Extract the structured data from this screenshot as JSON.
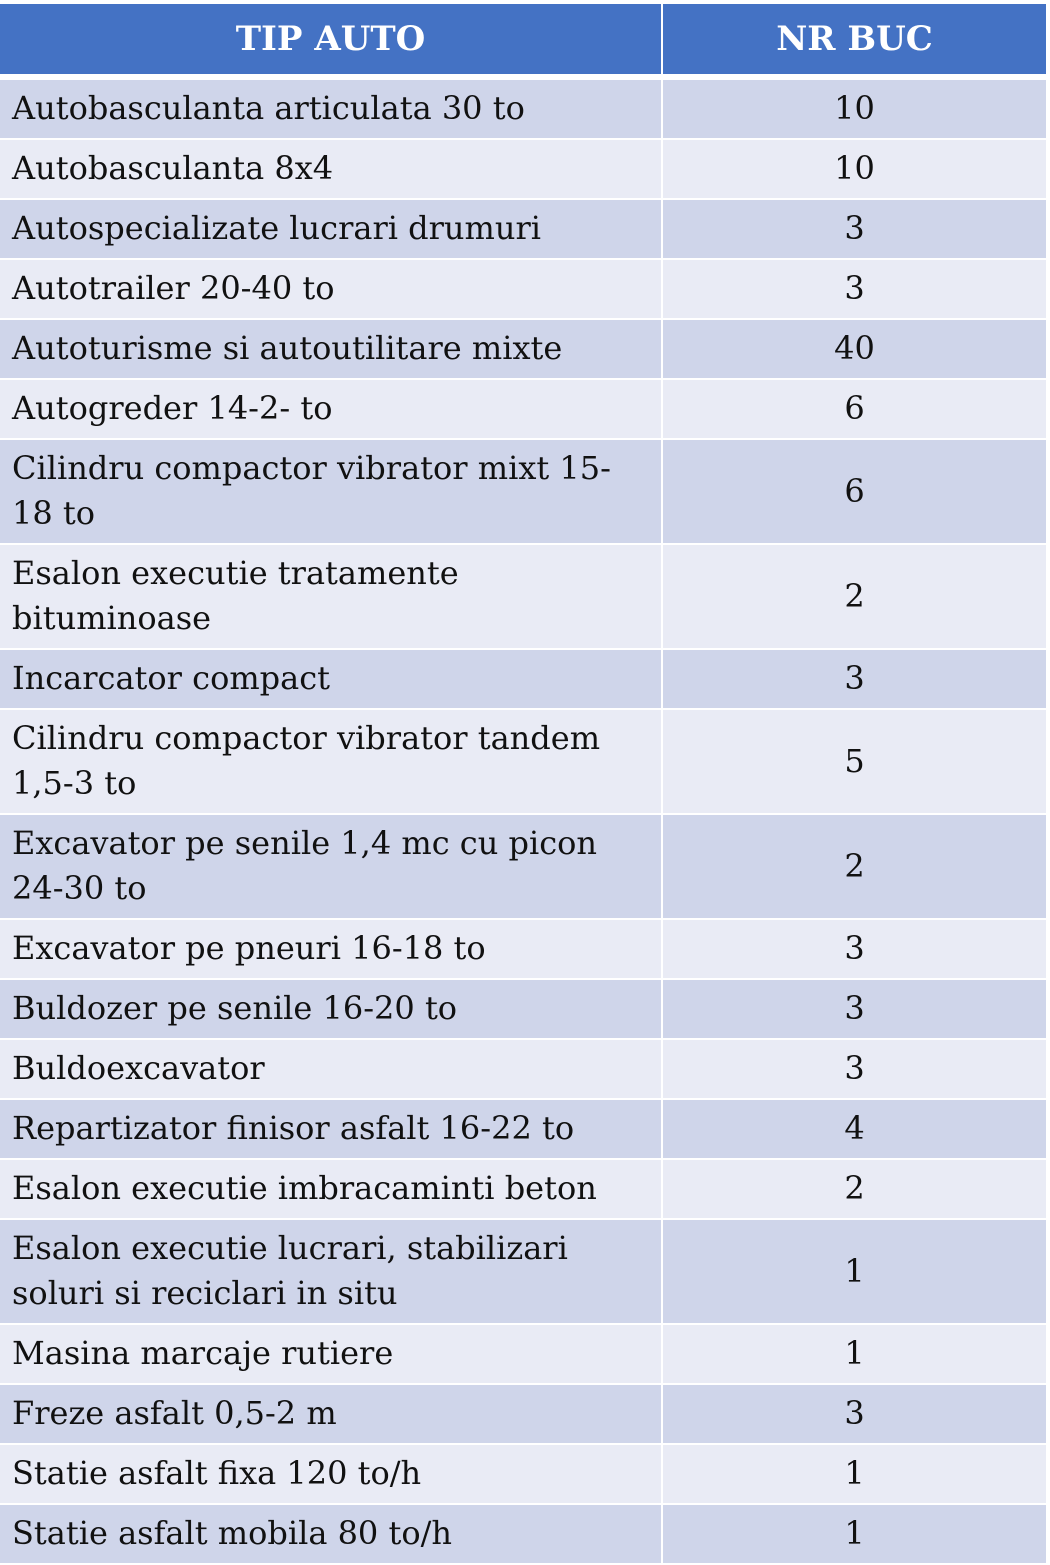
{
  "table": {
    "headers": [
      "TIP AUTO",
      "NR BUC"
    ],
    "rows": [
      {
        "tip": "Autobasculanta articulata 30 to",
        "nr": "10"
      },
      {
        "tip": "Autobasculanta 8x4",
        "nr": "10"
      },
      {
        "tip": "Autospecializate lucrari drumuri",
        "nr": "3"
      },
      {
        "tip": "Autotrailer 20-40 to",
        "nr": "3"
      },
      {
        "tip": "Autoturisme si autoutilitare mixte",
        "nr": "40"
      },
      {
        "tip": "Autogreder 14-2- to",
        "nr": "6"
      },
      {
        "tip": "Cilindru compactor vibrator mixt 15-18 to",
        "nr": "6"
      },
      {
        "tip": "Esalon executie tratamente bituminoase",
        "nr": "2"
      },
      {
        "tip": "Incarcator compact",
        "nr": "3"
      },
      {
        "tip": "Cilindru compactor vibrator tandem 1,5-3 to",
        "nr": "5"
      },
      {
        "tip": "Excavator pe senile 1,4 mc cu picon 24-30 to",
        "nr": "2"
      },
      {
        "tip": "Excavator pe pneuri 16-18 to",
        "nr": "3"
      },
      {
        "tip": "Buldozer pe senile 16-20 to",
        "nr": "3"
      },
      {
        "tip": "Buldoexcavator",
        "nr": "3"
      },
      {
        "tip": "Repartizator finisor asfalt 16-22 to",
        "nr": "4"
      },
      {
        "tip": "Esalon executie imbracaminti beton",
        "nr": "2"
      },
      {
        "tip": "Esalon executie lucrari, stabilizari soluri si reciclari in situ",
        "nr": "1"
      },
      {
        "tip": "Masina marcaje rutiere",
        "nr": "1"
      },
      {
        "tip": "Freze asfalt 0,5-2 m",
        "nr": "3"
      },
      {
        "tip": "Statie asfalt fixa 120 to/h",
        "nr": "1"
      },
      {
        "tip": "Statie asfalt mobila 80 to/h",
        "nr": "1"
      }
    ]
  }
}
